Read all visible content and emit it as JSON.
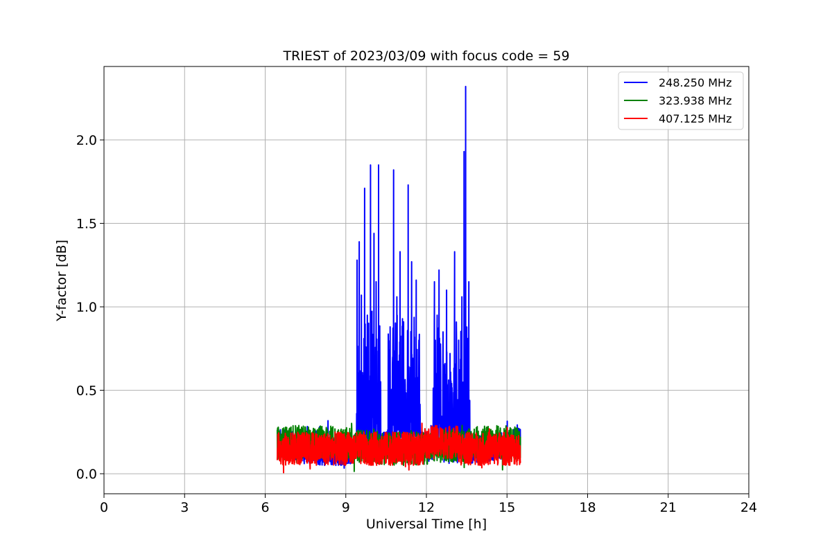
{
  "chart_data": {
    "type": "line",
    "title": "TRIEST of 2023/03/09 with focus code = 59",
    "xlabel": "Universal Time [h]",
    "ylabel": "Y-factor [dB]",
    "xlim": [
      0,
      24
    ],
    "ylim": [
      -0.12,
      2.44
    ],
    "xticks": [
      0,
      3,
      6,
      9,
      12,
      15,
      18,
      21,
      24
    ],
    "xtick_labels": [
      "0",
      "3",
      "6",
      "9",
      "12",
      "15",
      "18",
      "21",
      "24"
    ],
    "yticks": [
      0.0,
      0.5,
      1.0,
      1.5,
      2.0
    ],
    "ytick_labels": [
      "0.0",
      "0.5",
      "1.0",
      "1.5",
      "2.0"
    ],
    "grid": true,
    "legend_position": "top-right",
    "data_range_x": [
      6.45,
      15.5
    ],
    "series": [
      {
        "name": "248.250 MHz",
        "color": "#0000ff",
        "baseline_range": [
          0.03,
          0.33
        ],
        "peaks": [
          {
            "x": 9.42,
            "y": 1.28
          },
          {
            "x": 9.5,
            "y": 1.39
          },
          {
            "x": 9.58,
            "y": 1.07
          },
          {
            "x": 9.7,
            "y": 1.71
          },
          {
            "x": 9.8,
            "y": 0.95
          },
          {
            "x": 9.92,
            "y": 1.85
          },
          {
            "x": 10.05,
            "y": 1.44
          },
          {
            "x": 10.13,
            "y": 1.15
          },
          {
            "x": 10.22,
            "y": 1.85
          },
          {
            "x": 10.65,
            "y": 0.88
          },
          {
            "x": 10.78,
            "y": 1.82
          },
          {
            "x": 10.9,
            "y": 1.06
          },
          {
            "x": 11.02,
            "y": 1.33
          },
          {
            "x": 11.15,
            "y": 0.91
          },
          {
            "x": 11.32,
            "y": 1.73
          },
          {
            "x": 11.45,
            "y": 1.27
          },
          {
            "x": 11.62,
            "y": 1.16
          },
          {
            "x": 11.72,
            "y": 0.8
          },
          {
            "x": 12.3,
            "y": 1.15
          },
          {
            "x": 12.4,
            "y": 0.95
          },
          {
            "x": 12.47,
            "y": 1.22
          },
          {
            "x": 12.62,
            "y": 0.85
          },
          {
            "x": 12.75,
            "y": 1.1
          },
          {
            "x": 12.88,
            "y": 0.72
          },
          {
            "x": 13.05,
            "y": 1.33
          },
          {
            "x": 13.2,
            "y": 0.8
          },
          {
            "x": 13.32,
            "y": 1.06
          },
          {
            "x": 13.4,
            "y": 1.93
          },
          {
            "x": 13.46,
            "y": 2.32
          },
          {
            "x": 13.58,
            "y": 1.15
          }
        ]
      },
      {
        "name": "323.938 MHz",
        "color": "#008000",
        "baseline_range": [
          0.0,
          0.31
        ]
      },
      {
        "name": "407.125 MHz",
        "color": "#ff0000",
        "baseline_range": [
          0.0,
          0.31
        ]
      }
    ]
  }
}
